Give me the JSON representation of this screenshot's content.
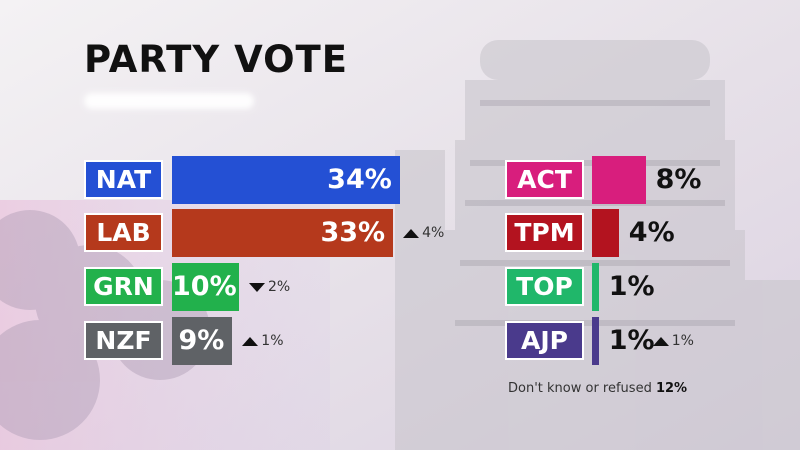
{
  "title": "PARTY VOTE",
  "footnote": {
    "label": "Don't know or refused",
    "value": "12%"
  },
  "chart_data": {
    "type": "bar",
    "title": "PARTY VOTE",
    "unit": "%",
    "bars": [
      {
        "party": "NAT",
        "value": 34,
        "label": "34%",
        "color": "#2450d4",
        "change": null
      },
      {
        "party": "LAB",
        "value": 33,
        "label": "33%",
        "color": "#b5391c",
        "change": {
          "direction": "up",
          "label": "4%"
        }
      },
      {
        "party": "GRN",
        "value": 10,
        "label": "10%",
        "color": "#22b14c",
        "change": {
          "direction": "down",
          "label": "2%"
        }
      },
      {
        "party": "NZF",
        "value": 9,
        "label": "9%",
        "color": "#5f6266",
        "change": {
          "direction": "up",
          "label": "1%"
        }
      },
      {
        "party": "ACT",
        "value": 8,
        "label": "8%",
        "color": "#d81e7d",
        "change": null
      },
      {
        "party": "TPM",
        "value": 4,
        "label": "4%",
        "color": "#b3131f",
        "change": null
      },
      {
        "party": "TOP",
        "value": 1,
        "label": "1%",
        "color": "#20b76a",
        "change": null
      },
      {
        "party": "AJP",
        "value": 1,
        "label": "1%",
        "color": "#4a3a8c",
        "change": {
          "direction": "up",
          "label": "1%"
        }
      }
    ]
  }
}
